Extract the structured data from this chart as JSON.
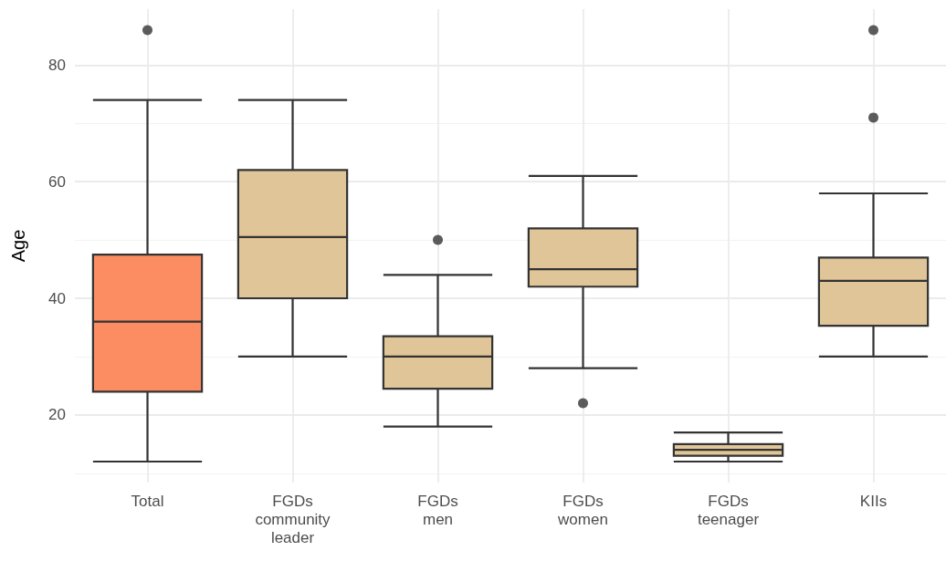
{
  "chart_data": {
    "type": "box",
    "ylabel": "Age",
    "categories": [
      "Total",
      "FGDs\ncommunity\nleader",
      "FGDs\nmen",
      "FGDs\nwomen",
      "FGDs\nteenager",
      "KIIs"
    ],
    "boxes": [
      {
        "low": 12,
        "q1": 24,
        "median": 36,
        "q3": 47.5,
        "high": 74,
        "outliers": [
          86
        ]
      },
      {
        "low": 30,
        "q1": 40,
        "median": 50.5,
        "q3": 62,
        "high": 74
      },
      {
        "low": 18,
        "q1": 24.5,
        "median": 30,
        "q3": 33.5,
        "high": 44,
        "outliers": [
          50
        ]
      },
      {
        "low": 28,
        "q1": 42,
        "median": 45,
        "q3": 52,
        "high": 61,
        "outliers": [
          22
        ]
      },
      {
        "low": 12,
        "q1": 13,
        "median": 14,
        "q3": 15,
        "high": 17
      },
      {
        "low": 30,
        "q1": 35.3,
        "median": 43,
        "q3": 47,
        "high": 58,
        "outliers": [
          86,
          71
        ]
      }
    ],
    "colors": [
      "#fc8d62",
      "#dfc597",
      "#dfc597",
      "#dfc597",
      "#dfc597",
      "#dfc597"
    ],
    "ylim": [
      8.4,
      89.6
    ],
    "yticks": [
      20,
      40,
      60,
      80
    ],
    "grid": true
  }
}
